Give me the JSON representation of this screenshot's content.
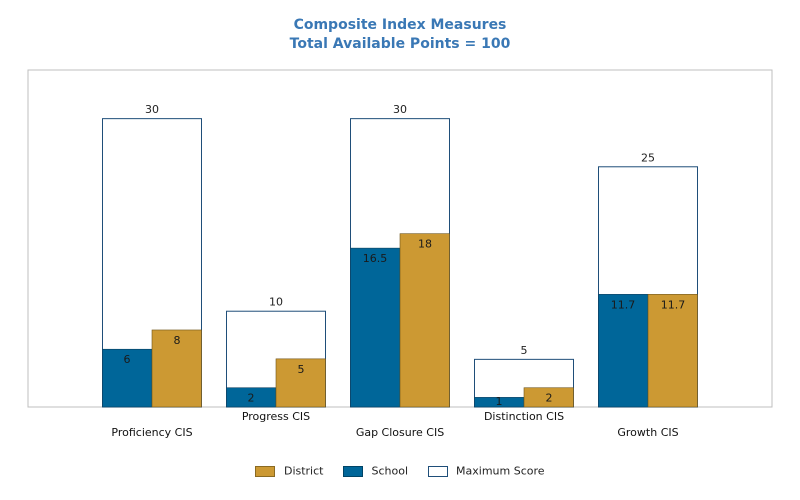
{
  "chart_data": {
    "type": "bar",
    "title": "Composite Index Measures",
    "subtitle": "Total Available Points = 100",
    "categories": [
      "Proficiency CIS",
      "Progress CIS",
      "Gap Closure CIS",
      "Distinction CIS",
      "Growth CIS"
    ],
    "series": [
      {
        "name": "School",
        "values": [
          6,
          2,
          16.5,
          1,
          11.7
        ],
        "labels": [
          "6",
          "2",
          "16.5",
          "1",
          "11.7"
        ],
        "color": "#006699"
      },
      {
        "name": "District",
        "values": [
          8,
          5,
          18,
          2,
          11.7
        ],
        "labels": [
          "8",
          "5",
          "18",
          "2",
          "11.7"
        ],
        "color": "#CC9933"
      },
      {
        "name": "Maximum Score",
        "values": [
          30,
          10,
          30,
          5,
          25
        ],
        "labels": [
          "30",
          "10",
          "30",
          "5",
          "25"
        ],
        "color": "#FFFFFF",
        "outline": "#1F4E79"
      }
    ],
    "ylim": [
      0,
      35
    ],
    "grid": false,
    "legend_position": "bottom",
    "legend_order": [
      "District",
      "School",
      "Maximum Score"
    ]
  }
}
